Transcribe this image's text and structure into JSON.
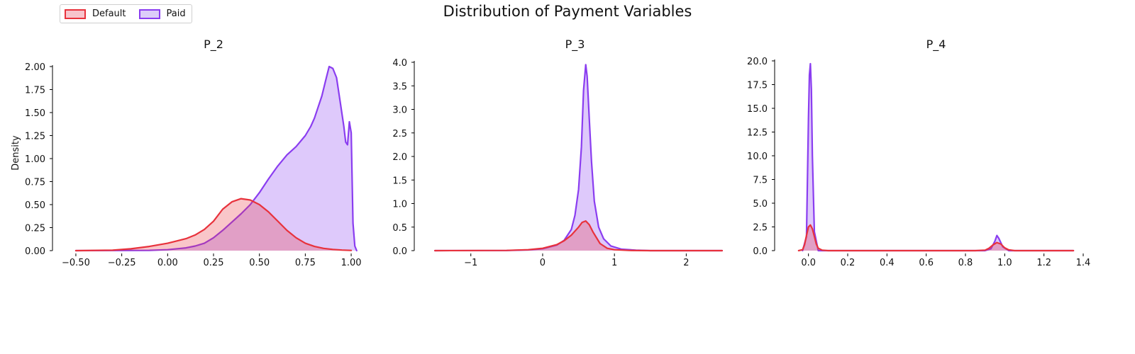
{
  "figure": {
    "title": "Distribution of Payment Variables"
  },
  "legend": [
    {
      "label": "Default",
      "color": "#e8323c",
      "fill": "#f7c4cc"
    },
    {
      "label": "Paid",
      "color": "#8a3df0",
      "fill": "#dccdf9"
    }
  ],
  "colors": {
    "default_line": "#e8323c",
    "paid_line": "#8a3df0",
    "axis": "#000000"
  },
  "chart_data": [
    {
      "type": "area",
      "title": "P_2",
      "xlabel": "",
      "ylabel": "Density",
      "xlim": [
        -0.55,
        1.05
      ],
      "ylim": [
        0,
        2.0
      ],
      "xticks": [
        -0.5,
        -0.25,
        0.0,
        0.25,
        0.5,
        0.75,
        1.0
      ],
      "xtick_labels": [
        "−0.50",
        "−0.25",
        "0.00",
        "0.25",
        "0.50",
        "0.75",
        "1.00"
      ],
      "yticks": [
        0,
        0.25,
        0.5,
        0.75,
        1.0,
        1.25,
        1.5,
        1.75,
        2.0
      ],
      "ytick_labels": [
        "0.00",
        "0.25",
        "0.50",
        "0.75",
        "1.00",
        "1.25",
        "1.50",
        "1.75",
        "2.00"
      ],
      "grid": false,
      "series": [
        {
          "name": "Default",
          "x": [
            -0.5,
            -0.3,
            -0.2,
            -0.1,
            0.0,
            0.1,
            0.15,
            0.2,
            0.25,
            0.3,
            0.35,
            0.4,
            0.45,
            0.5,
            0.55,
            0.6,
            0.65,
            0.7,
            0.75,
            0.8,
            0.85,
            0.9,
            0.95,
            1.0
          ],
          "y": [
            0,
            0.005,
            0.02,
            0.045,
            0.08,
            0.13,
            0.17,
            0.23,
            0.32,
            0.45,
            0.53,
            0.565,
            0.55,
            0.5,
            0.42,
            0.32,
            0.22,
            0.14,
            0.08,
            0.045,
            0.025,
            0.013,
            0.006,
            0.002
          ]
        },
        {
          "name": "Paid",
          "x": [
            -0.5,
            -0.1,
            0.0,
            0.1,
            0.15,
            0.2,
            0.25,
            0.3,
            0.35,
            0.4,
            0.45,
            0.5,
            0.55,
            0.6,
            0.65,
            0.7,
            0.75,
            0.78,
            0.8,
            0.82,
            0.84,
            0.86,
            0.88,
            0.9,
            0.92,
            0.94,
            0.96,
            0.97,
            0.98,
            0.99,
            1.0,
            1.01,
            1.02,
            1.03
          ],
          "y": [
            0,
            0.003,
            0.01,
            0.03,
            0.05,
            0.08,
            0.14,
            0.22,
            0.31,
            0.4,
            0.5,
            0.63,
            0.78,
            0.92,
            1.04,
            1.13,
            1.25,
            1.35,
            1.44,
            1.56,
            1.68,
            1.84,
            2.0,
            1.98,
            1.88,
            1.62,
            1.35,
            1.18,
            1.15,
            1.4,
            1.28,
            0.3,
            0.05,
            0
          ]
        }
      ]
    },
    {
      "type": "area",
      "title": "P_3",
      "xlabel": "",
      "ylabel": "",
      "xlim": [
        -1.6,
        2.5
      ],
      "ylim": [
        0,
        4.0
      ],
      "xticks": [
        -1,
        0,
        1,
        2
      ],
      "xtick_labels": [
        "−1",
        "0",
        "1",
        "2"
      ],
      "yticks": [
        0,
        0.5,
        1.0,
        1.5,
        2.0,
        2.5,
        3.0,
        3.5,
        4.0
      ],
      "ytick_labels": [
        "0.0",
        "0.5",
        "1.0",
        "1.5",
        "2.0",
        "2.5",
        "3.0",
        "3.5",
        "4.0"
      ],
      "grid": false,
      "series": [
        {
          "name": "Default",
          "x": [
            -1.5,
            -0.5,
            -0.2,
            0.0,
            0.2,
            0.3,
            0.4,
            0.5,
            0.55,
            0.6,
            0.65,
            0.7,
            0.8,
            0.9,
            1.0,
            1.2,
            1.5,
            2.5
          ],
          "y": [
            0,
            0.005,
            0.02,
            0.05,
            0.13,
            0.21,
            0.33,
            0.5,
            0.6,
            0.63,
            0.55,
            0.4,
            0.15,
            0.05,
            0.02,
            0.005,
            0,
            0
          ]
        },
        {
          "name": "Paid",
          "x": [
            -1.5,
            -0.5,
            -0.2,
            0.0,
            0.2,
            0.3,
            0.4,
            0.45,
            0.5,
            0.54,
            0.57,
            0.6,
            0.62,
            0.65,
            0.68,
            0.72,
            0.78,
            0.85,
            0.95,
            1.1,
            1.3,
            1.5,
            2.5
          ],
          "y": [
            0,
            0.003,
            0.015,
            0.04,
            0.12,
            0.22,
            0.45,
            0.75,
            1.3,
            2.2,
            3.4,
            3.95,
            3.7,
            2.8,
            1.9,
            1.05,
            0.5,
            0.25,
            0.1,
            0.03,
            0.01,
            0,
            0
          ]
        }
      ]
    },
    {
      "type": "area",
      "title": "P_4",
      "xlabel": "",
      "ylabel": "",
      "xlim": [
        -0.1,
        1.4
      ],
      "ylim": [
        0,
        20.0
      ],
      "xticks": [
        0.0,
        0.2,
        0.4,
        0.6,
        0.8,
        1.0,
        1.2,
        1.4
      ],
      "xtick_labels": [
        "0.0",
        "0.2",
        "0.4",
        "0.6",
        "0.8",
        "1.0",
        "1.2",
        "1.4"
      ],
      "yticks": [
        0,
        2.5,
        5.0,
        7.5,
        10.0,
        12.5,
        15.0,
        17.5,
        20.0
      ],
      "ytick_labels": [
        "0.0",
        "2.5",
        "5.0",
        "7.5",
        "10.0",
        "12.5",
        "15.0",
        "17.5",
        "20.0"
      ],
      "grid": false,
      "series": [
        {
          "name": "Default",
          "x": [
            -0.05,
            -0.03,
            -0.02,
            -0.01,
            0.0,
            0.01,
            0.02,
            0.03,
            0.04,
            0.05,
            0.07,
            0.1,
            0.85,
            0.9,
            0.92,
            0.94,
            0.96,
            0.98,
            1.0,
            1.02,
            1.05,
            1.35
          ],
          "y": [
            0,
            0.1,
            0.6,
            1.6,
            2.5,
            2.7,
            2.3,
            1.5,
            0.7,
            0.25,
            0.05,
            0,
            0,
            0.05,
            0.25,
            0.6,
            0.85,
            0.7,
            0.3,
            0.08,
            0,
            0
          ]
        },
        {
          "name": "Paid",
          "x": [
            -0.03,
            -0.01,
            0.0,
            0.005,
            0.01,
            0.015,
            0.02,
            0.03,
            0.05,
            0.9,
            0.93,
            0.95,
            0.96,
            0.97,
            0.99,
            1.02,
            1.35
          ],
          "y": [
            0,
            1.5,
            14.0,
            18.5,
            19.7,
            17.0,
            10.0,
            2.0,
            0,
            0,
            0.2,
            1.0,
            1.6,
            1.3,
            0.4,
            0,
            0
          ]
        }
      ]
    }
  ]
}
